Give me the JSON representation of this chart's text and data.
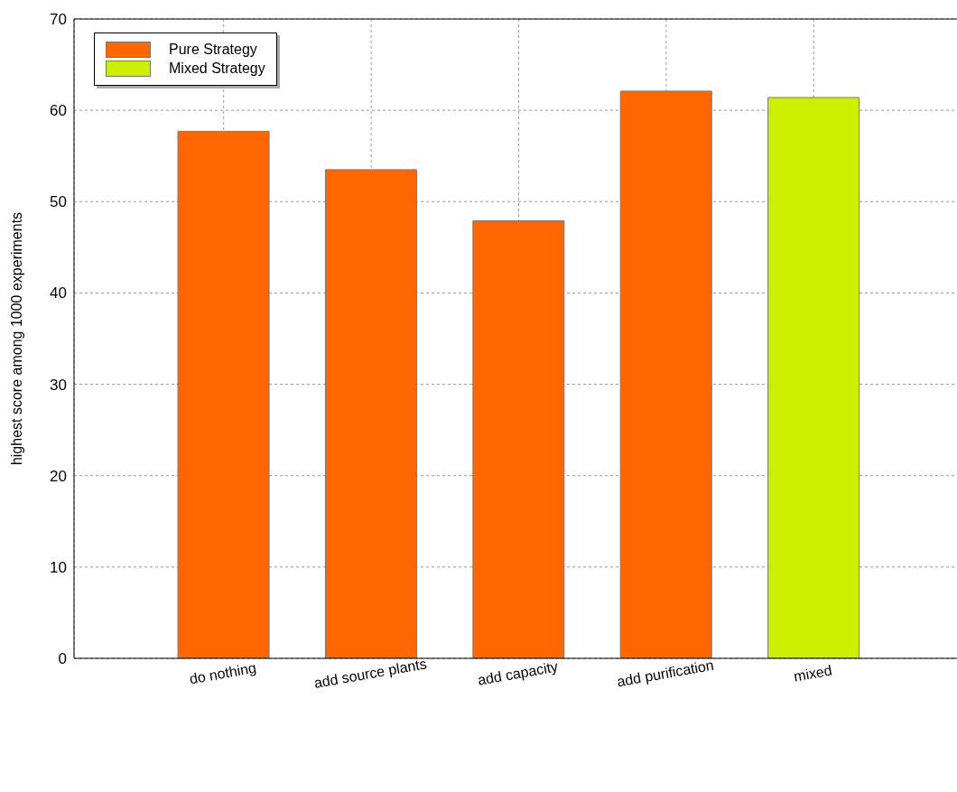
{
  "chart_data": {
    "type": "bar",
    "ylabel": "highest score among 1000 experiments",
    "categories": [
      "do nothing",
      "add source plants",
      "add capacity",
      "add purification",
      "mixed"
    ],
    "series": [
      {
        "name": "Pure Strategy",
        "color": "#ff6600",
        "values": [
          57.7,
          53.5,
          47.9,
          62.1,
          null
        ]
      },
      {
        "name": "Mixed Strategy",
        "color": "#ccf000",
        "values": [
          null,
          null,
          null,
          null,
          61.4
        ]
      }
    ],
    "ylim": [
      0,
      70
    ],
    "yticks": [
      0,
      10,
      20,
      30,
      40,
      50,
      60,
      70
    ],
    "grid": true,
    "legend": "top left"
  }
}
